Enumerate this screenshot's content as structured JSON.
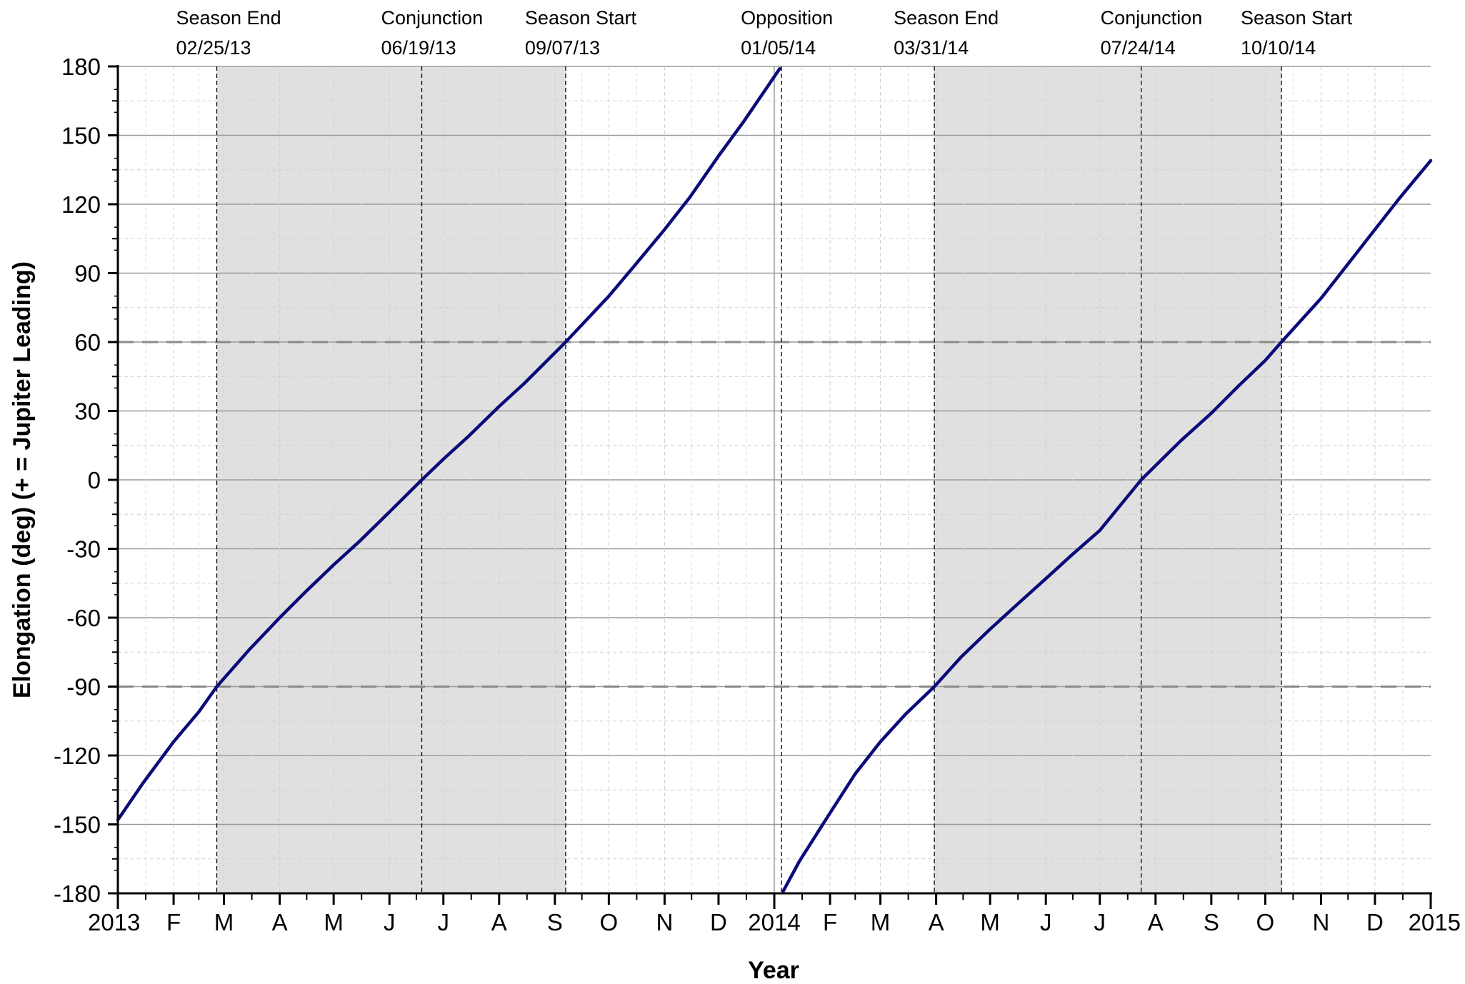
{
  "chart_data": {
    "type": "line",
    "title": "",
    "xlabel": "Year",
    "ylabel": "Elongation (deg) (+ = Jupiter Leading)",
    "ylim": [
      -180,
      180
    ],
    "xlim": [
      "2013-01-01",
      "2015-01-01"
    ],
    "yticks": [
      180,
      150,
      120,
      90,
      60,
      30,
      0,
      -30,
      -60,
      -90,
      -120,
      -150,
      -180
    ],
    "xticks": [
      {
        "date": "2013-01-01",
        "label": "2013"
      },
      {
        "date": "2013-02-01",
        "label": "F"
      },
      {
        "date": "2013-03-01",
        "label": "M"
      },
      {
        "date": "2013-04-01",
        "label": "A"
      },
      {
        "date": "2013-05-01",
        "label": "M"
      },
      {
        "date": "2013-06-01",
        "label": "J"
      },
      {
        "date": "2013-07-01",
        "label": "J"
      },
      {
        "date": "2013-08-01",
        "label": "A"
      },
      {
        "date": "2013-09-01",
        "label": "S"
      },
      {
        "date": "2013-10-01",
        "label": "O"
      },
      {
        "date": "2013-11-01",
        "label": "N"
      },
      {
        "date": "2013-12-01",
        "label": "D"
      },
      {
        "date": "2014-01-01",
        "label": "2014"
      },
      {
        "date": "2014-02-01",
        "label": "F"
      },
      {
        "date": "2014-03-01",
        "label": "M"
      },
      {
        "date": "2014-04-01",
        "label": "A"
      },
      {
        "date": "2014-05-01",
        "label": "M"
      },
      {
        "date": "2014-06-01",
        "label": "J"
      },
      {
        "date": "2014-07-01",
        "label": "J"
      },
      {
        "date": "2014-08-01",
        "label": "A"
      },
      {
        "date": "2014-09-01",
        "label": "S"
      },
      {
        "date": "2014-10-01",
        "label": "O"
      },
      {
        "date": "2014-11-01",
        "label": "N"
      },
      {
        "date": "2014-12-01",
        "label": "D"
      },
      {
        "date": "2015-01-01",
        "label": "2015"
      }
    ],
    "reference_lines": [
      60,
      -90
    ],
    "grid": true,
    "events": [
      {
        "name": "Season End",
        "date_label": "02/25/13",
        "date": "2013-02-25"
      },
      {
        "name": "Conjunction",
        "date_label": "06/19/13",
        "date": "2013-06-19"
      },
      {
        "name": "Season Start",
        "date_label": "09/07/13",
        "date": "2013-09-07"
      },
      {
        "name": "Opposition",
        "date_label": "01/05/14",
        "date": "2014-01-05"
      },
      {
        "name": "Season End",
        "date_label": "03/31/14",
        "date": "2014-03-31"
      },
      {
        "name": "Conjunction",
        "date_label": "07/24/14",
        "date": "2014-07-24"
      },
      {
        "name": "Season Start",
        "date_label": "10/10/14",
        "date": "2014-10-10"
      }
    ],
    "shaded_regions": [
      {
        "from": "2013-02-25",
        "to": "2013-09-07"
      },
      {
        "from": "2014-03-31",
        "to": "2014-10-10"
      }
    ],
    "series": [
      {
        "color": "#0a0a7a",
        "segments": [
          {
            "x": [
              "2013-01-01",
              "2013-01-15",
              "2013-02-01",
              "2013-02-15",
              "2013-02-25",
              "2013-03-15",
              "2013-04-01",
              "2013-04-15",
              "2013-05-01",
              "2013-05-15",
              "2013-06-01",
              "2013-06-19",
              "2013-07-01",
              "2013-07-15",
              "2013-08-01",
              "2013-08-15",
              "2013-09-07",
              "2013-10-01",
              "2013-10-15",
              "2013-11-01",
              "2013-11-15",
              "2013-12-01",
              "2013-12-15",
              "2014-01-04"
            ],
            "y": [
              -148,
              -132,
              -114,
              -101,
              -90,
              -74,
              -60,
              -49,
              -37,
              -27,
              -14,
              0,
              9,
              19,
              32,
              42,
              60,
              80,
              93,
              109,
              123,
              141,
              156,
              179
            ]
          },
          {
            "x": [
              "2014-01-06",
              "2014-01-15",
              "2014-02-01",
              "2014-02-15",
              "2014-03-01",
              "2014-03-15",
              "2014-03-31",
              "2014-04-15",
              "2014-05-01",
              "2014-05-15",
              "2014-06-01",
              "2014-06-15",
              "2014-07-01",
              "2014-07-24",
              "2014-08-15",
              "2014-09-01",
              "2014-09-15",
              "2014-10-01",
              "2014-10-10",
              "2014-11-01",
              "2014-11-15",
              "2014-12-01",
              "2014-12-15",
              "2015-01-01"
            ],
            "y": [
              -179,
              -166,
              -145,
              -128,
              -114,
              -102,
              -90,
              -77,
              -65,
              -55,
              -43,
              -33,
              -22,
              0,
              17,
              29,
              40,
              52,
              60,
              79,
              93,
              109,
              123,
              139
            ]
          }
        ]
      }
    ]
  }
}
